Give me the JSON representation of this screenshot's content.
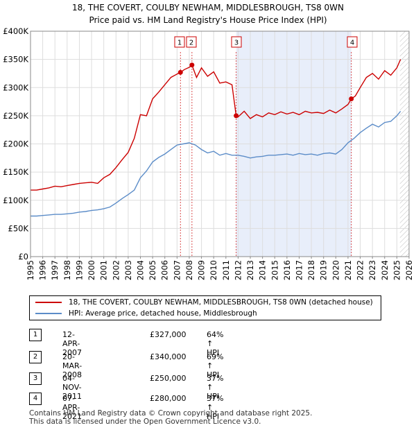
{
  "chart_data": {
    "type": "line",
    "title": "18, THE COVERT, COULBY NEWHAM, MIDDLESBROUGH, TS8 0WN",
    "subtitle": "Price paid vs. HM Land Registry's House Price Index (HPI)",
    "xlabel": "",
    "ylabel": "",
    "xlim": [
      1995,
      2026
    ],
    "ylim": [
      0,
      400000
    ],
    "y_ticks": [
      {
        "value": 0,
        "label": "£0"
      },
      {
        "value": 50000,
        "label": "£50K"
      },
      {
        "value": 100000,
        "label": "£100K"
      },
      {
        "value": 150000,
        "label": "£150K"
      },
      {
        "value": 200000,
        "label": "£200K"
      },
      {
        "value": 250000,
        "label": "£250K"
      },
      {
        "value": 300000,
        "label": "£300K"
      },
      {
        "value": 350000,
        "label": "£350K"
      },
      {
        "value": 400000,
        "label": "£400K"
      }
    ],
    "x_ticks": [
      "1995",
      "1996",
      "1997",
      "1998",
      "1999",
      "2000",
      "2001",
      "2002",
      "2003",
      "2004",
      "2005",
      "2006",
      "2007",
      "2008",
      "2009",
      "2010",
      "2011",
      "2012",
      "2013",
      "2014",
      "2015",
      "2016",
      "2017",
      "2018",
      "2019",
      "2020",
      "2021",
      "2022",
      "2023",
      "2024",
      "2025",
      "2026"
    ],
    "grid": true,
    "shaded_period": [
      2011.84,
      2021.27
    ],
    "future_hatch_from": 2025.25,
    "series": [
      {
        "name": "18, THE COVERT, COULBY NEWHAM, MIDDLESBROUGH, TS8 0WN (detached house)",
        "color": "#cc0000",
        "x": [
          1995.0,
          1995.5,
          1996.0,
          1996.5,
          1997.0,
          1997.5,
          1998.0,
          1998.5,
          1999.0,
          1999.5,
          2000.0,
          2000.5,
          2001.0,
          2001.5,
          2002.0,
          2002.5,
          2003.0,
          2003.5,
          2004.0,
          2004.5,
          2005.0,
          2005.5,
          2006.0,
          2006.5,
          2007.0,
          2007.28,
          2007.6,
          2008.0,
          2008.22,
          2008.6,
          2009.0,
          2009.5,
          2010.0,
          2010.5,
          2011.0,
          2011.5,
          2011.84,
          2012.0,
          2012.5,
          2013.0,
          2013.5,
          2014.0,
          2014.5,
          2015.0,
          2015.5,
          2016.0,
          2016.5,
          2017.0,
          2017.5,
          2018.0,
          2018.5,
          2019.0,
          2019.5,
          2020.0,
          2020.5,
          2021.0,
          2021.27,
          2021.6,
          2022.0,
          2022.5,
          2023.0,
          2023.5,
          2024.0,
          2024.5,
          2025.0,
          2025.3
        ],
        "y": [
          118000,
          118000,
          120000,
          122000,
          125000,
          124000,
          126000,
          128000,
          130000,
          131000,
          132000,
          130000,
          140000,
          146000,
          158000,
          172000,
          185000,
          210000,
          252000,
          250000,
          280000,
          292000,
          305000,
          318000,
          324000,
          327000,
          332000,
          336000,
          340000,
          318000,
          335000,
          320000,
          328000,
          308000,
          310000,
          305000,
          250000,
          248000,
          258000,
          245000,
          252000,
          248000,
          255000,
          252000,
          257000,
          253000,
          256000,
          252000,
          258000,
          255000,
          256000,
          254000,
          260000,
          255000,
          262000,
          270000,
          280000,
          285000,
          300000,
          318000,
          325000,
          315000,
          330000,
          322000,
          335000,
          350000
        ]
      },
      {
        "name": "HPI: Average price, detached house, Middlesbrough",
        "color": "#5b8cc8",
        "x": [
          1995.0,
          1995.5,
          1996.0,
          1996.5,
          1997.0,
          1997.5,
          1998.0,
          1998.5,
          1999.0,
          1999.5,
          2000.0,
          2000.5,
          2001.0,
          2001.5,
          2002.0,
          2002.5,
          2003.0,
          2003.5,
          2004.0,
          2004.5,
          2005.0,
          2005.5,
          2006.0,
          2006.5,
          2007.0,
          2007.5,
          2008.0,
          2008.5,
          2009.0,
          2009.5,
          2010.0,
          2010.5,
          2011.0,
          2011.5,
          2012.0,
          2012.5,
          2013.0,
          2013.5,
          2014.0,
          2014.5,
          2015.0,
          2015.5,
          2016.0,
          2016.5,
          2017.0,
          2017.5,
          2018.0,
          2018.5,
          2019.0,
          2019.5,
          2020.0,
          2020.5,
          2021.0,
          2021.5,
          2022.0,
          2022.5,
          2023.0,
          2023.5,
          2024.0,
          2024.5,
          2025.0,
          2025.3
        ],
        "y": [
          72000,
          72000,
          73000,
          74000,
          75000,
          75000,
          76000,
          77000,
          79000,
          80000,
          82000,
          83000,
          85000,
          88000,
          95000,
          103000,
          110000,
          118000,
          140000,
          152000,
          168000,
          176000,
          182000,
          190000,
          198000,
          200000,
          202000,
          198000,
          190000,
          184000,
          187000,
          180000,
          183000,
          180000,
          180000,
          178000,
          175000,
          177000,
          178000,
          180000,
          180000,
          181000,
          182000,
          180000,
          183000,
          181000,
          182000,
          180000,
          183000,
          184000,
          182000,
          190000,
          202000,
          210000,
          220000,
          228000,
          235000,
          230000,
          238000,
          240000,
          250000,
          258000
        ]
      }
    ],
    "annotations": [
      {
        "n": "1",
        "x": 2007.28,
        "y": 327000
      },
      {
        "n": "2",
        "x": 2008.22,
        "y": 340000
      },
      {
        "n": "3",
        "x": 2011.84,
        "y": 250000
      },
      {
        "n": "4",
        "x": 2021.27,
        "y": 280000
      }
    ]
  },
  "legend": {
    "property_label": "18, THE COVERT, COULBY NEWHAM, MIDDLESBROUGH, TS8 0WN (detached house)",
    "hpi_label": "HPI: Average price, detached house, Middlesbrough"
  },
  "transactions": [
    {
      "n": "1",
      "date": "12-APR-2007",
      "price": "£327,000",
      "hpi": "64% ↑ HPI"
    },
    {
      "n": "2",
      "date": "20-MAR-2008",
      "price": "£340,000",
      "hpi": "69% ↑ HPI"
    },
    {
      "n": "3",
      "date": "04-NOV-2011",
      "price": "£250,000",
      "hpi": "37% ↑ HPI"
    },
    {
      "n": "4",
      "date": "07-APR-2021",
      "price": "£280,000",
      "hpi": "37% ↑ HPI"
    }
  ],
  "footer": {
    "line1": "Contains HM Land Registry data © Crown copyright and database right 2025.",
    "line2": "This data is licensed under the Open Government Licence v3.0."
  }
}
